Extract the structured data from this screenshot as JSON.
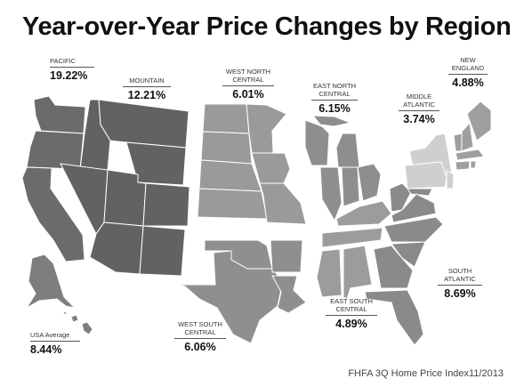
{
  "title": "Year-over-Year Price Changes by Region",
  "source": "FHFA 3Q Home Price Index11/2013",
  "colors": {
    "pacific": "#6b6b6b",
    "mountain": "#626262",
    "west_north_central": "#9a9a9a",
    "east_north_central": "#8e8e8e",
    "middle_atlantic": "#cfcfcf",
    "new_england": "#9f9f9f",
    "south_atlantic": "#8a8a8a",
    "east_south_central": "#9c9c9c",
    "west_south_central": "#8f8f8f",
    "alaska_hawaii": "#7d7d7d"
  },
  "regions": {
    "pacific": {
      "name": "PACIFIC",
      "value": "19.22%"
    },
    "mountain": {
      "name": "MOUNTAIN",
      "value": "12.21%"
    },
    "west_north_central": {
      "name": "WEST NORTH CENTRAL",
      "value": "6.01%"
    },
    "east_north_central": {
      "name": "EAST NORTH CENTRAL",
      "value": "6.15%"
    },
    "middle_atlantic": {
      "name": "MIDDLE ATLANTIC",
      "value": "3.74%"
    },
    "new_england": {
      "name": "NEW ENGLAND",
      "value": "4.88%"
    },
    "south_atlantic": {
      "name": "SOUTH ATLANTIC",
      "value": "8.69%"
    },
    "east_south_central": {
      "name": "EAST SOUTH CENTRAL",
      "value": "4.89%"
    },
    "west_south_central": {
      "name": "WEST SOUTH CENTRAL",
      "value": "6.06%"
    },
    "usa_average": {
      "name": "USA Average",
      "value": "8.44%"
    }
  }
}
